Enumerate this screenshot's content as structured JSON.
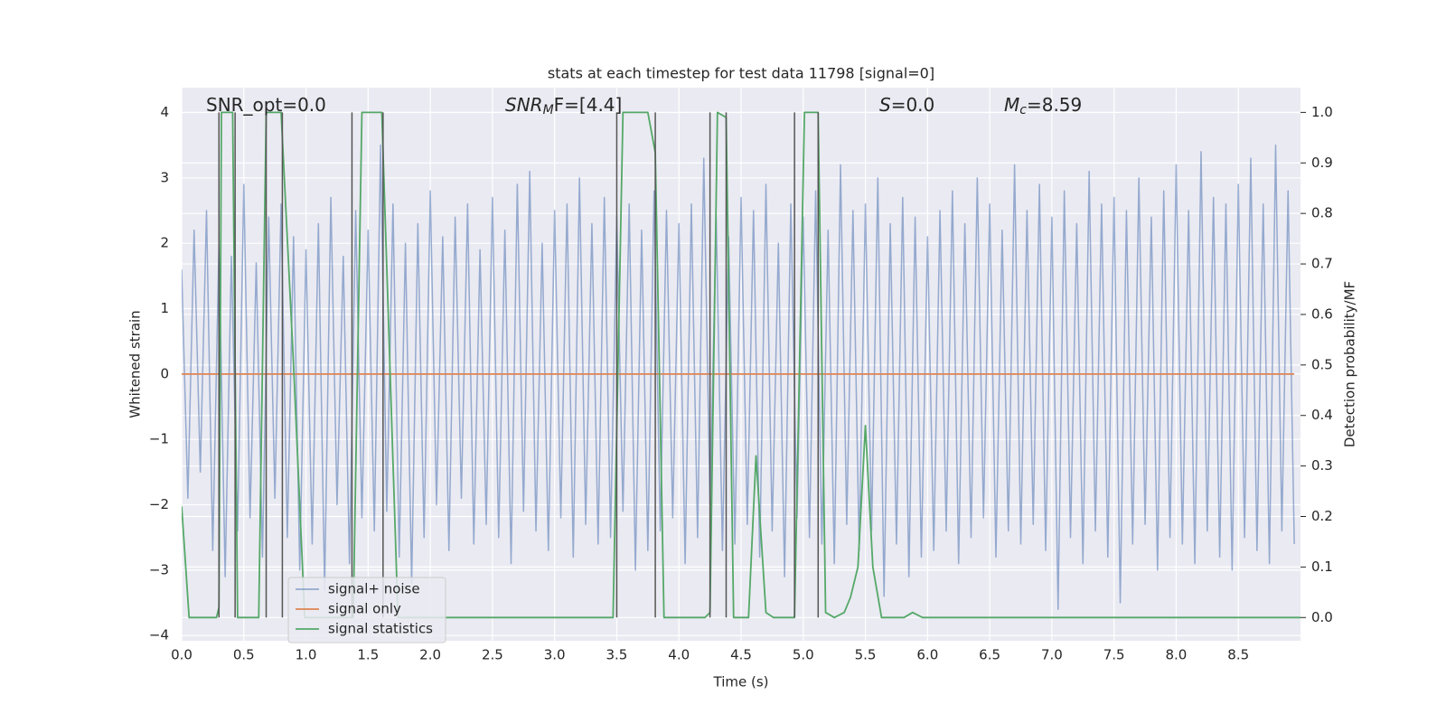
{
  "chart_data": {
    "type": "line",
    "title": "stats at each timestep for test data 11798 [signal=0]",
    "xlabel": "Time (s)",
    "ylabel": "Whitened strain",
    "y2label": "Detection probability/MF",
    "xlim": [
      0,
      9.0
    ],
    "ylim": [
      -4.08,
      4.38
    ],
    "y2lim": [
      -0.046,
      1.049
    ],
    "xticks": [
      {
        "value": 0,
        "label": "0.0"
      },
      0.5,
      {
        "value": 1,
        "label": "1.0"
      },
      1.5,
      {
        "value": 2,
        "label": "2.0"
      },
      2.5,
      {
        "value": 3,
        "label": "3.0"
      },
      3.5,
      {
        "value": 4,
        "label": "4.0"
      },
      4.5,
      {
        "value": 5,
        "label": "5.0"
      },
      5.5,
      {
        "value": 6,
        "label": "6.0"
      },
      6.5,
      {
        "value": 7,
        "label": "7.0"
      },
      7.5,
      {
        "value": 8,
        "label": "8.0"
      },
      8.5
    ],
    "yticks": [
      {
        "value": -4,
        "label": "−4"
      },
      {
        "value": -3,
        "label": "−3"
      },
      {
        "value": -2,
        "label": "−2"
      },
      {
        "value": -1,
        "label": "−1"
      },
      0,
      1,
      2,
      3,
      4
    ],
    "y2ticks": [
      {
        "value": 0,
        "label": "0.0"
      },
      0.1,
      0.2,
      0.3,
      0.4,
      0.5,
      0.6,
      0.7,
      0.8,
      0.9,
      {
        "value": 1,
        "label": "1.0"
      }
    ],
    "grid": true,
    "legend": "lower left",
    "annotations": [
      {
        "text": "SNR_opt=0.0"
      },
      {
        "base": "SNR",
        "sub": "M",
        "rest": "F=[4.4]"
      },
      {
        "base": "S",
        "rest": "=0.0"
      },
      {
        "base": "M",
        "sub": "c",
        "rest": "=8.59"
      }
    ],
    "series": [
      {
        "name": "signal+ noise",
        "color": "#4c72b0",
        "x": [
          0,
          0.05,
          0.1,
          0.15,
          0.2,
          0.25,
          0.3,
          0.35,
          0.4,
          0.45,
          0.5,
          0.55,
          0.6,
          0.65,
          0.7,
          0.75,
          0.8,
          0.85,
          0.9,
          0.95,
          1,
          1.05,
          1.1,
          1.15,
          1.2,
          1.25,
          1.3,
          1.35,
          1.4,
          1.45,
          1.5,
          1.55,
          1.6,
          1.65,
          1.7,
          1.75,
          1.8,
          1.85,
          1.9,
          1.95,
          2,
          2.05,
          2.1,
          2.15,
          2.2,
          2.25,
          2.3,
          2.35,
          2.4,
          2.45,
          2.5,
          2.55,
          2.6,
          2.65,
          2.7,
          2.75,
          2.8,
          2.85,
          2.9,
          2.95,
          3,
          3.05,
          3.1,
          3.15,
          3.2,
          3.25,
          3.3,
          3.35,
          3.4,
          3.45,
          3.5,
          3.55,
          3.6,
          3.65,
          3.7,
          3.75,
          3.8,
          3.85,
          3.9,
          3.95,
          4,
          4.05,
          4.1,
          4.15,
          4.2,
          4.25,
          4.3,
          4.35,
          4.4,
          4.45,
          4.5,
          4.55,
          4.6,
          4.65,
          4.7,
          4.75,
          4.8,
          4.85,
          4.9,
          4.95,
          5,
          5.05,
          5.1,
          5.15,
          5.2,
          5.25,
          5.3,
          5.35,
          5.4,
          5.45,
          5.5,
          5.55,
          5.6,
          5.65,
          5.7,
          5.75,
          5.8,
          5.85,
          5.9,
          5.95,
          6,
          6.05,
          6.1,
          6.15,
          6.2,
          6.25,
          6.3,
          6.35,
          6.4,
          6.45,
          6.5,
          6.55,
          6.6,
          6.65,
          6.7,
          6.75,
          6.8,
          6.85,
          6.9,
          6.95,
          7,
          7.05,
          7.1,
          7.15,
          7.2,
          7.25,
          7.3,
          7.35,
          7.4,
          7.45,
          7.5,
          7.55,
          7.6,
          7.65,
          7.7,
          7.75,
          7.8,
          7.85,
          7.9,
          7.95,
          8,
          8.05,
          8.1,
          8.15,
          8.2,
          8.25,
          8.3,
          8.35,
          8.4,
          8.45,
          8.5,
          8.55,
          8.6,
          8.65,
          8.7,
          8.75,
          8.8,
          8.85,
          8.9,
          8.95
        ],
        "values": [
          1.6,
          -1.9,
          2.2,
          -1.5,
          2.5,
          -2.7,
          2.0,
          -3.1,
          1.8,
          -2.4,
          2.9,
          -2.2,
          1.7,
          -2.8,
          2.4,
          -1.9,
          2.6,
          -2.5,
          2.1,
          -3.0,
          1.9,
          -2.6,
          2.3,
          -3.3,
          2.7,
          -2.0,
          1.8,
          -2.9,
          2.5,
          -2.2,
          2.2,
          -2.4,
          3.5,
          -2.1,
          2.6,
          -2.8,
          2.0,
          -3.2,
          2.3,
          -2.5,
          2.8,
          -2.0,
          2.1,
          -2.7,
          2.4,
          -1.9,
          2.6,
          -2.6,
          1.9,
          -2.3,
          2.7,
          -2.5,
          2.2,
          -2.9,
          2.9,
          -2.1,
          3.1,
          -2.4,
          2.0,
          -2.7,
          2.5,
          -2.2,
          2.6,
          -2.8,
          3.0,
          -2.3,
          2.3,
          -2.6,
          2.7,
          -2.5,
          2.4,
          -2.1,
          2.6,
          -3.0,
          2.2,
          -2.7,
          2.8,
          -2.4,
          2.5,
          -2.2,
          2.3,
          -2.9,
          2.6,
          -2.5,
          3.3,
          -2.0,
          2.4,
          -2.7,
          2.1,
          -2.6,
          2.7,
          -2.3,
          2.5,
          -2.8,
          2.9,
          -2.4,
          2.0,
          -3.1,
          2.6,
          -2.2,
          2.4,
          -2.5,
          2.8,
          -2.6,
          2.2,
          -2.9,
          3.2,
          -2.3,
          2.5,
          -2.7,
          2.6,
          -2.4,
          3.0,
          -3.4,
          2.3,
          -2.6,
          2.7,
          -3.1,
          2.4,
          -2.8,
          2.1,
          -2.7,
          2.5,
          -2.4,
          2.8,
          -2.9,
          2.3,
          -2.5,
          3.0,
          -2.2,
          2.6,
          -2.8,
          2.2,
          -2.4,
          3.2,
          -2.6,
          2.5,
          -2.3,
          2.9,
          -2.7,
          2.4,
          -3.6,
          2.8,
          -2.5,
          2.3,
          -2.9,
          3.1,
          -2.4,
          2.6,
          -2.8,
          2.7,
          -3.5,
          2.5,
          -2.6,
          3.0,
          -2.3,
          2.4,
          -3.0,
          2.8,
          -2.5,
          3.2,
          -2.6,
          2.5,
          -2.9,
          3.4,
          -2.4,
          2.7,
          -2.8,
          2.6,
          -3.0,
          2.9,
          -2.5,
          3.3,
          -2.7,
          2.6,
          -2.9,
          3.5,
          -2.4,
          2.8,
          -2.6
        ]
      },
      {
        "name": "signal only",
        "color": "#dd8452",
        "x": [
          0,
          8.95
        ],
        "values": [
          0,
          0
        ]
      },
      {
        "name": "signal statistics",
        "color": "#55a868",
        "axis": "y2",
        "x": [
          0,
          0.06,
          0.28,
          0.3,
          0.32,
          0.41,
          0.45,
          0.62,
          0.68,
          0.8,
          0.9,
          0.99,
          1.38,
          1.45,
          1.61,
          1.74,
          3.47,
          3.55,
          3.75,
          3.81,
          3.88,
          4.21,
          4.25,
          4.31,
          4.38,
          4.44,
          4.56,
          4.62,
          4.7,
          4.76,
          4.93,
          5.01,
          5.12,
          5.18,
          5.25,
          5.33,
          5.38,
          5.44,
          5.5,
          5.56,
          5.63,
          5.81,
          5.88,
          5.96,
          9.0
        ],
        "values": [
          0.22,
          0,
          0,
          0.02,
          1.0,
          1.0,
          0,
          0,
          1.0,
          1.0,
          0.5,
          0,
          0,
          1.0,
          1.0,
          0,
          0,
          1.0,
          1.0,
          0.92,
          0,
          0,
          0.01,
          1.0,
          0.99,
          0,
          0,
          0.32,
          0.01,
          0,
          0,
          1.0,
          1.0,
          0.01,
          0,
          0.01,
          0.04,
          0.1,
          0.38,
          0.1,
          0,
          0,
          0.01,
          0,
          0
        ]
      }
    ],
    "vlines": {
      "color": "#555555",
      "axis": "y2",
      "ymin": 0,
      "ymax": 1,
      "x": [
        0.3,
        0.43,
        0.68,
        0.81,
        1.37,
        1.62,
        3.5,
        3.81,
        4.25,
        4.38,
        4.93,
        5.12
      ]
    }
  }
}
